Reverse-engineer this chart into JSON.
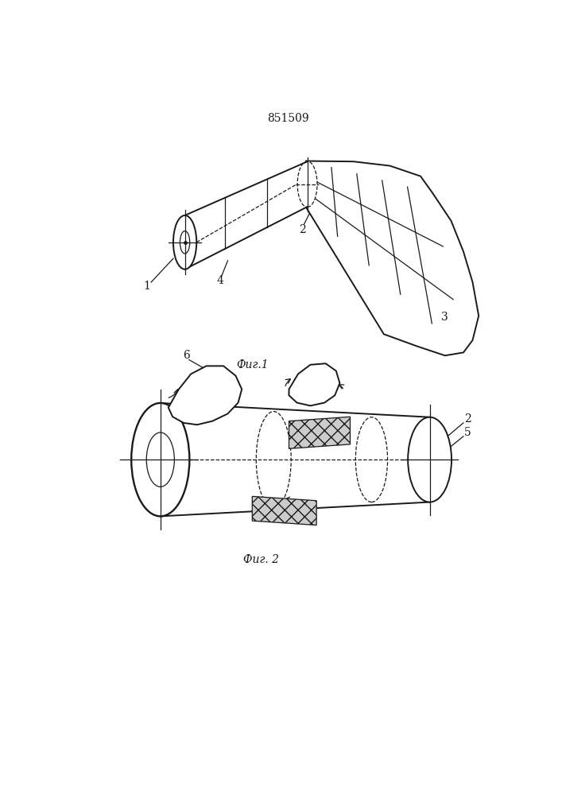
{
  "title": "851509",
  "fig1_caption": "Фиг.1",
  "fig2_caption": "Фиг. 2",
  "line_color": "#1a1a1a",
  "label_1": "1",
  "label_2": "2",
  "label_3": "3",
  "label_4": "4",
  "label_5": "5",
  "label_6": "6"
}
